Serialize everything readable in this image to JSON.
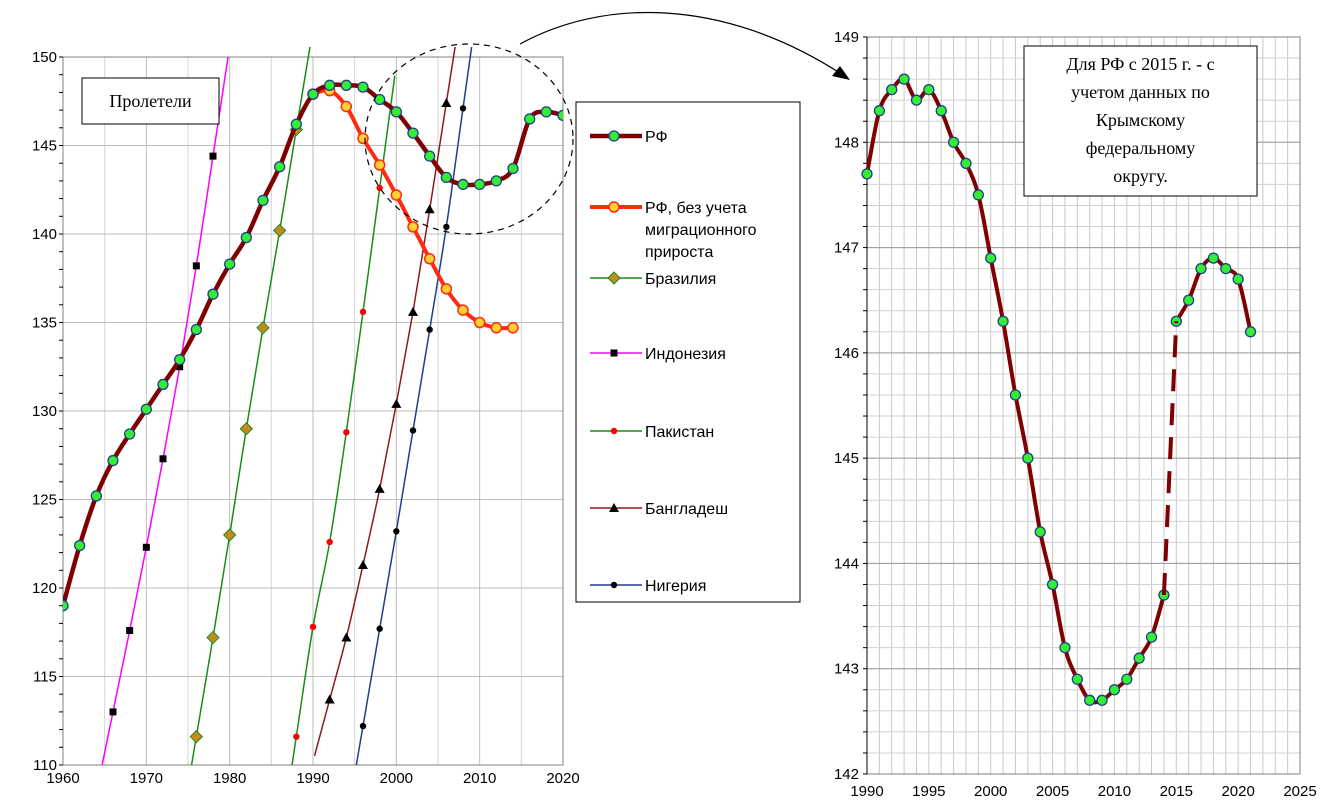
{
  "chart_data": [
    {
      "type": "line",
      "xlim": [
        1960,
        2020
      ],
      "ylim": [
        110,
        150
      ],
      "x_ticks": [
        1960,
        1970,
        1980,
        1990,
        2000,
        2010,
        2020
      ],
      "y_ticks": [
        110,
        115,
        120,
        125,
        130,
        135,
        140,
        145,
        150
      ],
      "grid": true,
      "annotation": "Пролетели",
      "legend": "right",
      "series": [
        {
          "name": "РФ",
          "color": "#7f0000",
          "marker_fill": "#33ee33",
          "x": [
            1960,
            1962,
            1964,
            1966,
            1968,
            1970,
            1972,
            1974,
            1976,
            1978,
            1980,
            1982,
            1984,
            1986,
            1988,
            1990,
            1992,
            1994,
            1996,
            1998,
            2000,
            2002,
            2004,
            2006,
            2008,
            2010,
            2012,
            2014,
            2016,
            2018,
            2020
          ],
          "y": [
            119.0,
            122.4,
            125.2,
            127.2,
            128.7,
            130.1,
            131.5,
            132.9,
            134.6,
            136.6,
            138.3,
            139.8,
            141.9,
            143.8,
            146.2,
            147.9,
            148.4,
            148.4,
            148.3,
            147.6,
            146.9,
            145.7,
            144.4,
            143.2,
            142.8,
            142.8,
            143.0,
            143.7,
            146.5,
            146.9,
            146.7
          ]
        },
        {
          "name": "РФ, без учета миграционного прироста",
          "color": "#ff2a10",
          "marker_fill": "#ffd133",
          "x": [
            1990,
            1992,
            1994,
            1996,
            1998,
            2000,
            2002,
            2004,
            2006,
            2008,
            2010,
            2012,
            2014
          ],
          "y": [
            147.9,
            148.1,
            147.2,
            145.4,
            143.9,
            142.2,
            140.4,
            138.6,
            136.9,
            135.7,
            135.0,
            134.7,
            134.7
          ]
        },
        {
          "name": "Бразилия",
          "color": "#1a8c1a",
          "marker": "diamond",
          "marker_fill": "#c58a1c",
          "x": [
            1976,
            1978,
            1980,
            1982,
            1984,
            1986,
            1988
          ],
          "y": [
            111.6,
            117.2,
            123.0,
            129.0,
            134.7,
            140.2,
            145.9
          ]
        },
        {
          "name": "Индонезия",
          "color": "#ff00ff",
          "marker": "square",
          "marker_fill": "#000000",
          "x": [
            1966,
            1968,
            1970,
            1972,
            1974,
            1976,
            1978
          ],
          "y": [
            113.0,
            117.6,
            122.3,
            127.3,
            132.5,
            138.2,
            144.4
          ]
        },
        {
          "name": "Пакистан",
          "color": "#1a8c1a",
          "marker": "circle",
          "marker_fill": "#ff0000",
          "x": [
            1988,
            1990,
            1992,
            1994,
            1996,
            1998
          ],
          "y": [
            111.6,
            117.8,
            122.6,
            128.8,
            135.6,
            142.6
          ]
        },
        {
          "name": "Бангладеш",
          "color": "#8b1a1a",
          "marker": "triangle",
          "marker_fill": "#000000",
          "x": [
            1992,
            1994,
            1996,
            1998,
            2000,
            2002,
            2004,
            2006
          ],
          "y": [
            113.7,
            117.2,
            121.3,
            125.6,
            130.4,
            135.6,
            141.4,
            147.4
          ]
        },
        {
          "name": "Нигерия",
          "color": "#1f3f8a",
          "marker": "circle",
          "marker_fill": "#000000",
          "x": [
            1996,
            1998,
            2000,
            2002,
            2004,
            2006,
            2008
          ],
          "y": [
            112.2,
            117.7,
            123.2,
            128.9,
            134.6,
            140.4,
            147.1
          ]
        }
      ]
    },
    {
      "type": "line",
      "xlim": [
        1990,
        2025
      ],
      "ylim": [
        142,
        149
      ],
      "x_ticks": [
        1990,
        1995,
        2000,
        2005,
        2010,
        2015,
        2020,
        2025
      ],
      "y_ticks": [
        142,
        143,
        144,
        145,
        146,
        147,
        148,
        149
      ],
      "grid": true,
      "annotation": "Для РФ с 2015  г. - с учетом данных по Крымскому федеральному округу.",
      "annotation_lines": [
        "Для РФ с 2015  г. - с",
        "учетом данных по",
        "Крымскому",
        "федеральному",
        "округу."
      ],
      "series": [
        {
          "color": "#7f0000",
          "marker_fill": "#33ee33",
          "x": [
            1990,
            1991,
            1992,
            1993,
            1994,
            1995,
            1996,
            1997,
            1998,
            1999,
            2000,
            2001,
            2002,
            2003,
            2004,
            2005,
            2006,
            2007,
            2008,
            2009,
            2010,
            2011,
            2012,
            2013,
            2014
          ],
          "y": [
            147.7,
            148.3,
            148.5,
            148.6,
            148.4,
            148.5,
            148.3,
            148.0,
            147.8,
            147.5,
            146.9,
            146.3,
            145.6,
            145.0,
            144.3,
            143.8,
            143.2,
            142.9,
            142.7,
            142.7,
            142.8,
            142.9,
            143.1,
            143.3,
            143.7
          ]
        },
        {
          "color": "#7f0000",
          "marker_fill": "#33ee33",
          "x": [
            2015,
            2016,
            2017,
            2018,
            2019,
            2020,
            2021
          ],
          "y": [
            146.3,
            146.5,
            146.8,
            146.9,
            146.8,
            146.7,
            146.2
          ]
        },
        {
          "color": "#7f0000",
          "dashed": true,
          "marker": "none",
          "x": [
            2014,
            2015
          ],
          "y": [
            143.7,
            146.3
          ]
        }
      ]
    }
  ]
}
